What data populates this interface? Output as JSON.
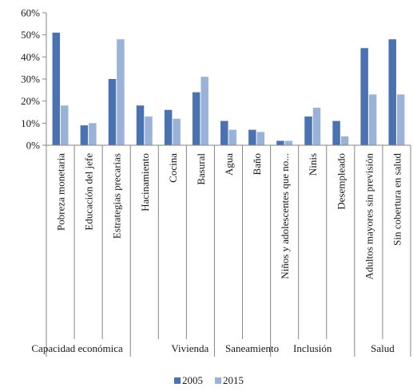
{
  "chart_data": {
    "type": "bar",
    "grouped_categories": true,
    "groups": [
      {
        "label": "Capacidad económica",
        "categories": [
          "Pobreza monetaria",
          "Educación del jefe",
          "Estrategias precarias"
        ]
      },
      {
        "label": "Vivienda",
        "categories": [
          "Hacinamiento",
          "Cocina",
          "Basural"
        ]
      },
      {
        "label": "Saneamiento",
        "categories": [
          "Agua",
          "Baño"
        ]
      },
      {
        "label": "Inclusión",
        "categories": [
          "Niños y adolescentes que no...",
          "Ninis",
          "Desempleado"
        ]
      },
      {
        "label": "Salud",
        "categories": [
          "Adultos mayores sin previsión",
          "Sin cobertura en salud"
        ]
      }
    ],
    "categories": [
      "Pobreza monetaria",
      "Educación del jefe",
      "Estrategias precarias",
      "Hacinamiento",
      "Cocina",
      "Basural",
      "Agua",
      "Baño",
      "Niños y adolescentes que no...",
      "Ninis",
      "Desempleado",
      "Adultos mayores sin previsión",
      "Sin cobertura en salud"
    ],
    "series": [
      {
        "name": "2005",
        "color": "#4a72b0",
        "values": [
          51,
          9,
          30,
          18,
          16,
          24,
          11,
          7,
          2,
          13,
          11,
          44,
          48
        ]
      },
      {
        "name": "2015",
        "color": "#9bb2d8",
        "values": [
          18,
          10,
          48,
          13,
          12,
          31,
          7,
          6,
          2,
          17,
          4,
          23,
          23
        ]
      }
    ],
    "ylim": [
      0,
      60
    ],
    "yticks": [
      0,
      10,
      20,
      30,
      40,
      50,
      60
    ],
    "ytick_labels": [
      "0%",
      "10%",
      "20%",
      "30%",
      "40%",
      "50%",
      "60%"
    ],
    "title": "",
    "xlabel": "",
    "ylabel": "",
    "grid": false,
    "legend_position": "bottom"
  }
}
